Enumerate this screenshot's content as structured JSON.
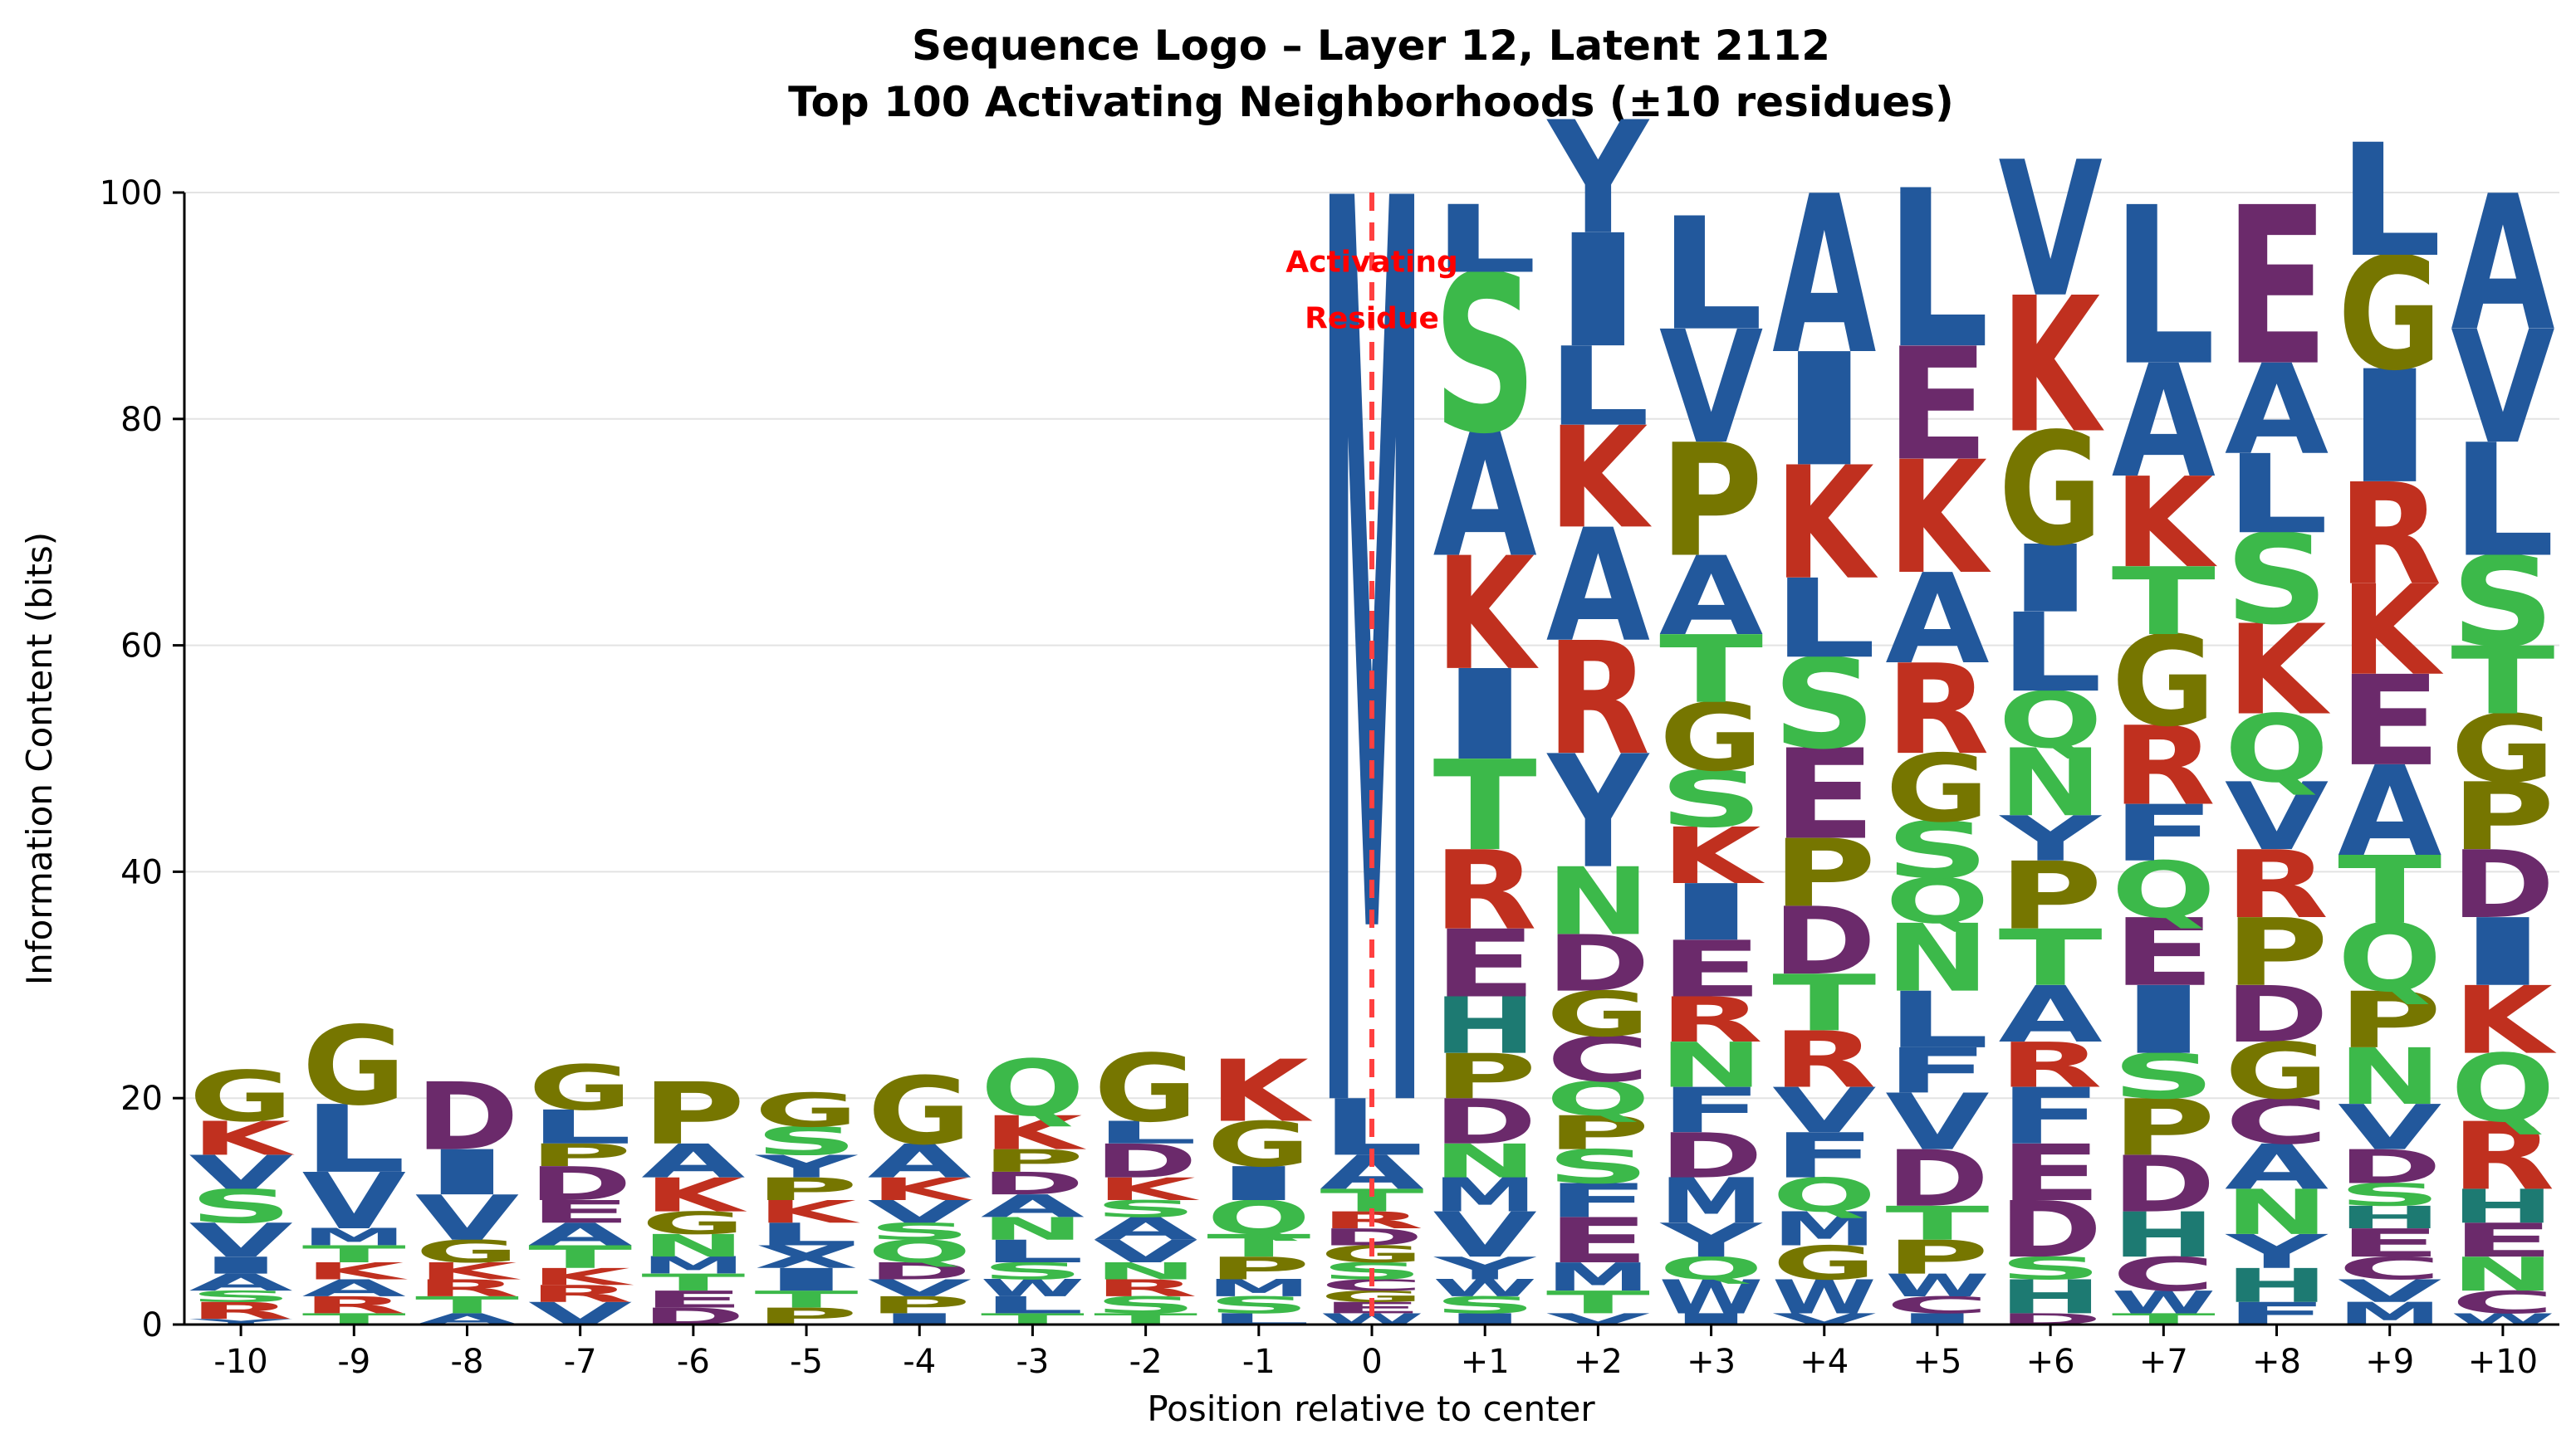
{
  "chart_data": {
    "type": "sequence-logo",
    "title": "Sequence Logo – Layer 12, Latent 2112",
    "subtitle": "Top 100 Activating Neighborhoods (±10 residues)",
    "xlabel": "Position relative to center",
    "ylabel": "Information Content (bits)",
    "ylim": [
      0,
      100
    ],
    "yticks": [
      0,
      20,
      40,
      60,
      80,
      100
    ],
    "grid": "horizontal",
    "annotation": {
      "text_line1": "Activating",
      "text_line2": "Residue",
      "position": "0"
    },
    "colors": {
      "hydrophobic": "#22589c",
      "positive": "#c0301f",
      "negative": "#6b2a6b",
      "polar": "#3cb94a",
      "special": "#767600",
      "aromatic": "#1d7a72",
      "marker": "#ff4040"
    },
    "color_map": {
      "A": "hydrophobic",
      "V": "hydrophobic",
      "L": "hydrophobic",
      "I": "hydrophobic",
      "M": "hydrophobic",
      "F": "hydrophobic",
      "W": "hydrophobic",
      "Y": "hydrophobic",
      "C": "negative",
      "K": "positive",
      "R": "positive",
      "D": "negative",
      "E": "negative",
      "S": "polar",
      "T": "polar",
      "N": "polar",
      "Q": "polar",
      "G": "special",
      "P": "special",
      "H": "aromatic"
    },
    "positions": [
      {
        "label": "-10",
        "stack": [
          [
            "Y",
            0.5
          ],
          [
            "R",
            1.5
          ],
          [
            "S",
            1
          ],
          [
            "A",
            1.5
          ],
          [
            "I",
            1.5
          ],
          [
            "V",
            3
          ],
          [
            "S",
            3
          ],
          [
            "V",
            3
          ],
          [
            "K",
            3
          ],
          [
            "G",
            4.5
          ]
        ]
      },
      {
        "label": "-9",
        "stack": [
          [
            "T",
            1
          ],
          [
            "R",
            1.5
          ],
          [
            "A",
            1.5
          ],
          [
            "K",
            1.5
          ],
          [
            "T",
            1.5
          ],
          [
            "M",
            1.5
          ],
          [
            "V",
            5
          ],
          [
            "L",
            6
          ],
          [
            "G",
            7
          ]
        ]
      },
      {
        "label": "-8",
        "stack": [
          [
            "A",
            1
          ],
          [
            "T",
            1.5
          ],
          [
            "R",
            1.5
          ],
          [
            "K",
            1.5
          ],
          [
            "G",
            2
          ],
          [
            "V",
            4
          ],
          [
            "I",
            4
          ],
          [
            "D",
            6
          ]
        ]
      },
      {
        "label": "-7",
        "stack": [
          [
            "V",
            2
          ],
          [
            "R",
            1.5
          ],
          [
            "K",
            1.5
          ],
          [
            "T",
            2
          ],
          [
            "A",
            2
          ],
          [
            "E",
            2
          ],
          [
            "D",
            3
          ],
          [
            "P",
            2
          ],
          [
            "L",
            3
          ],
          [
            "G",
            4
          ]
        ]
      },
      {
        "label": "-6",
        "stack": [
          [
            "D",
            1.5
          ],
          [
            "E",
            1.5
          ],
          [
            "T",
            1.5
          ],
          [
            "M",
            1.5
          ],
          [
            "N",
            2
          ],
          [
            "G",
            2
          ],
          [
            "K",
            3
          ],
          [
            "A",
            3
          ],
          [
            "P",
            5.5
          ]
        ]
      },
      {
        "label": "-5",
        "stack": [
          [
            "P",
            1.5
          ],
          [
            "T",
            1.5
          ],
          [
            "I",
            2
          ],
          [
            "X",
            2
          ],
          [
            "L",
            2
          ],
          [
            "K",
            2
          ],
          [
            "P",
            2
          ],
          [
            "Y",
            2
          ],
          [
            "S",
            2.5
          ],
          [
            "G",
            3
          ]
        ]
      },
      {
        "label": "-4",
        "stack": [
          [
            "I",
            1
          ],
          [
            "P",
            1.5
          ],
          [
            "V",
            1.5
          ],
          [
            "D",
            1.5
          ],
          [
            "Q",
            2
          ],
          [
            "S",
            1.5
          ],
          [
            "V",
            2
          ],
          [
            "K",
            2
          ],
          [
            "A",
            3
          ],
          [
            "G",
            6
          ]
        ]
      },
      {
        "label": "-3",
        "stack": [
          [
            "T",
            1
          ],
          [
            "L",
            1.5
          ],
          [
            "W",
            1.5
          ],
          [
            "S",
            1.5
          ],
          [
            "L",
            2
          ],
          [
            "N",
            2
          ],
          [
            "A",
            2
          ],
          [
            "D",
            2
          ],
          [
            "P",
            2
          ],
          [
            "K",
            3
          ],
          [
            "Q",
            5
          ]
        ]
      },
      {
        "label": "-2",
        "stack": [
          [
            "T",
            1
          ],
          [
            "S",
            1.5
          ],
          [
            "R",
            1.5
          ],
          [
            "N",
            1.5
          ],
          [
            "V",
            2
          ],
          [
            "A",
            2
          ],
          [
            "S",
            1.5
          ],
          [
            "K",
            2
          ],
          [
            "D",
            3
          ],
          [
            "L",
            2
          ],
          [
            "G",
            6
          ]
        ]
      },
      {
        "label": "-1",
        "stack": [
          [
            "L",
            1
          ],
          [
            "S",
            1.5
          ],
          [
            "M",
            1.5
          ],
          [
            "P",
            2
          ],
          [
            "T",
            2
          ],
          [
            "Q",
            3
          ],
          [
            "I",
            3
          ],
          [
            "G",
            4
          ],
          [
            "K",
            5.5
          ]
        ]
      },
      {
        "label": "0",
        "stack": [
          [
            "W",
            1
          ],
          [
            "E",
            1
          ],
          [
            "G",
            1
          ],
          [
            "C",
            1
          ],
          [
            "S",
            1.5
          ],
          [
            "G",
            1.5
          ],
          [
            "D",
            1.5
          ],
          [
            "R",
            1.5
          ],
          [
            "T",
            2
          ],
          [
            "A",
            3
          ],
          [
            "L",
            5
          ],
          [
            "M",
            80
          ]
        ]
      },
      {
        "label": "+1",
        "stack": [
          [
            "I",
            1
          ],
          [
            "S",
            1.5
          ],
          [
            "W",
            1.5
          ],
          [
            "Y",
            2
          ],
          [
            "V",
            4
          ],
          [
            "M",
            3
          ],
          [
            "N",
            3
          ],
          [
            "D",
            4
          ],
          [
            "P",
            4
          ],
          [
            "H",
            5
          ],
          [
            "E",
            6
          ],
          [
            "R",
            7
          ],
          [
            "T",
            8
          ],
          [
            "I",
            8
          ],
          [
            "K",
            10
          ],
          [
            "A",
            11
          ],
          [
            "S",
            14
          ],
          [
            "L",
            6
          ]
        ]
      },
      {
        "label": "+2",
        "stack": [
          [
            "V",
            1
          ],
          [
            "T",
            2
          ],
          [
            "M",
            2.5
          ],
          [
            "E",
            4
          ],
          [
            "F",
            3
          ],
          [
            "S",
            3
          ],
          [
            "P",
            3
          ],
          [
            "Q",
            3
          ],
          [
            "C",
            4
          ],
          [
            "G",
            4
          ],
          [
            "D",
            5
          ],
          [
            "N",
            6
          ],
          [
            "Y",
            10
          ],
          [
            "R",
            10
          ],
          [
            "A",
            10
          ],
          [
            "K",
            9
          ],
          [
            "L",
            7
          ],
          [
            "I",
            10
          ],
          [
            "Y",
            10
          ]
        ]
      },
      {
        "label": "+3",
        "stack": [
          [
            "I",
            1
          ],
          [
            "W",
            3
          ],
          [
            "Q",
            2
          ],
          [
            "Y",
            3
          ],
          [
            "M",
            4
          ],
          [
            "D",
            4
          ],
          [
            "F",
            4
          ],
          [
            "N",
            4
          ],
          [
            "R",
            4
          ],
          [
            "E",
            5
          ],
          [
            "I",
            5
          ],
          [
            "K",
            5
          ],
          [
            "S",
            5
          ],
          [
            "G",
            6
          ],
          [
            "T",
            6
          ],
          [
            "A",
            7
          ],
          [
            "P",
            10
          ],
          [
            "V",
            10
          ],
          [
            "L",
            10
          ]
        ]
      },
      {
        "label": "+4",
        "stack": [
          [
            "V",
            1
          ],
          [
            "W",
            3
          ],
          [
            "G",
            3
          ],
          [
            "M",
            3
          ],
          [
            "Q",
            3
          ],
          [
            "F",
            4
          ],
          [
            "V",
            4
          ],
          [
            "R",
            5
          ],
          [
            "T",
            5
          ],
          [
            "D",
            6
          ],
          [
            "P",
            6
          ],
          [
            "E",
            8
          ],
          [
            "S",
            8
          ],
          [
            "L",
            7
          ],
          [
            "K",
            10
          ],
          [
            "I",
            10
          ],
          [
            "A",
            14
          ]
        ]
      },
      {
        "label": "+5",
        "stack": [
          [
            "I",
            1
          ],
          [
            "C",
            1.5
          ],
          [
            "W",
            2
          ],
          [
            "P",
            3
          ],
          [
            "T",
            3
          ],
          [
            "D",
            5
          ],
          [
            "V",
            5
          ],
          [
            "F",
            4
          ],
          [
            "L",
            5
          ],
          [
            "N",
            6
          ],
          [
            "Q",
            4
          ],
          [
            "S",
            5
          ],
          [
            "G",
            6
          ],
          [
            "R",
            8
          ],
          [
            "A",
            8
          ],
          [
            "K",
            10
          ],
          [
            "E",
            10
          ],
          [
            "L",
            14
          ]
        ]
      },
      {
        "label": "+6",
        "stack": [
          [
            "D",
            1
          ],
          [
            "H",
            3
          ],
          [
            "S",
            2
          ],
          [
            "D",
            5
          ],
          [
            "E",
            5
          ],
          [
            "F",
            5
          ],
          [
            "R",
            4
          ],
          [
            "A",
            5
          ],
          [
            "T",
            5
          ],
          [
            "P",
            6
          ],
          [
            "Y",
            4
          ],
          [
            "N",
            6
          ],
          [
            "Q",
            5
          ],
          [
            "L",
            7
          ],
          [
            "I",
            6
          ],
          [
            "G",
            10
          ],
          [
            "K",
            12
          ],
          [
            "V",
            12
          ]
        ]
      },
      {
        "label": "+7",
        "stack": [
          [
            "T",
            1
          ],
          [
            "W",
            2
          ],
          [
            "C",
            3
          ],
          [
            "H",
            4
          ],
          [
            "D",
            5
          ],
          [
            "P",
            5
          ],
          [
            "S",
            4
          ],
          [
            "I",
            6
          ],
          [
            "E",
            6
          ],
          [
            "Q",
            5
          ],
          [
            "F",
            5
          ],
          [
            "R",
            7
          ],
          [
            "G",
            8
          ],
          [
            "T",
            6
          ],
          [
            "K",
            8
          ],
          [
            "A",
            10
          ],
          [
            "L",
            14
          ]
        ]
      },
      {
        "label": "+8",
        "stack": [
          [
            "F",
            2
          ],
          [
            "H",
            3
          ],
          [
            "Y",
            3
          ],
          [
            "N",
            4
          ],
          [
            "A",
            4
          ],
          [
            "C",
            4
          ],
          [
            "G",
            5
          ],
          [
            "D",
            5
          ],
          [
            "P",
            6
          ],
          [
            "R",
            6
          ],
          [
            "V",
            6
          ],
          [
            "Q",
            6
          ],
          [
            "K",
            8
          ],
          [
            "S",
            8
          ],
          [
            "L",
            7
          ],
          [
            "A",
            8
          ],
          [
            "E",
            14
          ]
        ]
      },
      {
        "label": "+9",
        "stack": [
          [
            "M",
            2
          ],
          [
            "V",
            2
          ],
          [
            "C",
            2
          ],
          [
            "E",
            2.5
          ],
          [
            "H",
            2
          ],
          [
            "S",
            2
          ],
          [
            "D",
            3
          ],
          [
            "V",
            4
          ],
          [
            "N",
            5
          ],
          [
            "P",
            5
          ],
          [
            "Q",
            6
          ],
          [
            "T",
            6
          ],
          [
            "A",
            8
          ],
          [
            "E",
            8
          ],
          [
            "K",
            8
          ],
          [
            "R",
            9
          ],
          [
            "I",
            10
          ],
          [
            "G",
            10
          ],
          [
            "L",
            10
          ]
        ]
      },
      {
        "label": "+10",
        "stack": [
          [
            "W",
            1
          ],
          [
            "C",
            2
          ],
          [
            "N",
            3
          ],
          [
            "E",
            3
          ],
          [
            "H",
            3
          ],
          [
            "R",
            6
          ],
          [
            "Q",
            6
          ],
          [
            "K",
            6
          ],
          [
            "I",
            6
          ],
          [
            "D",
            6
          ],
          [
            "P",
            6
          ],
          [
            "G",
            6
          ],
          [
            "T",
            6
          ],
          [
            "S",
            8
          ],
          [
            "L",
            10
          ],
          [
            "V",
            10
          ],
          [
            "A",
            12
          ]
        ]
      }
    ]
  }
}
